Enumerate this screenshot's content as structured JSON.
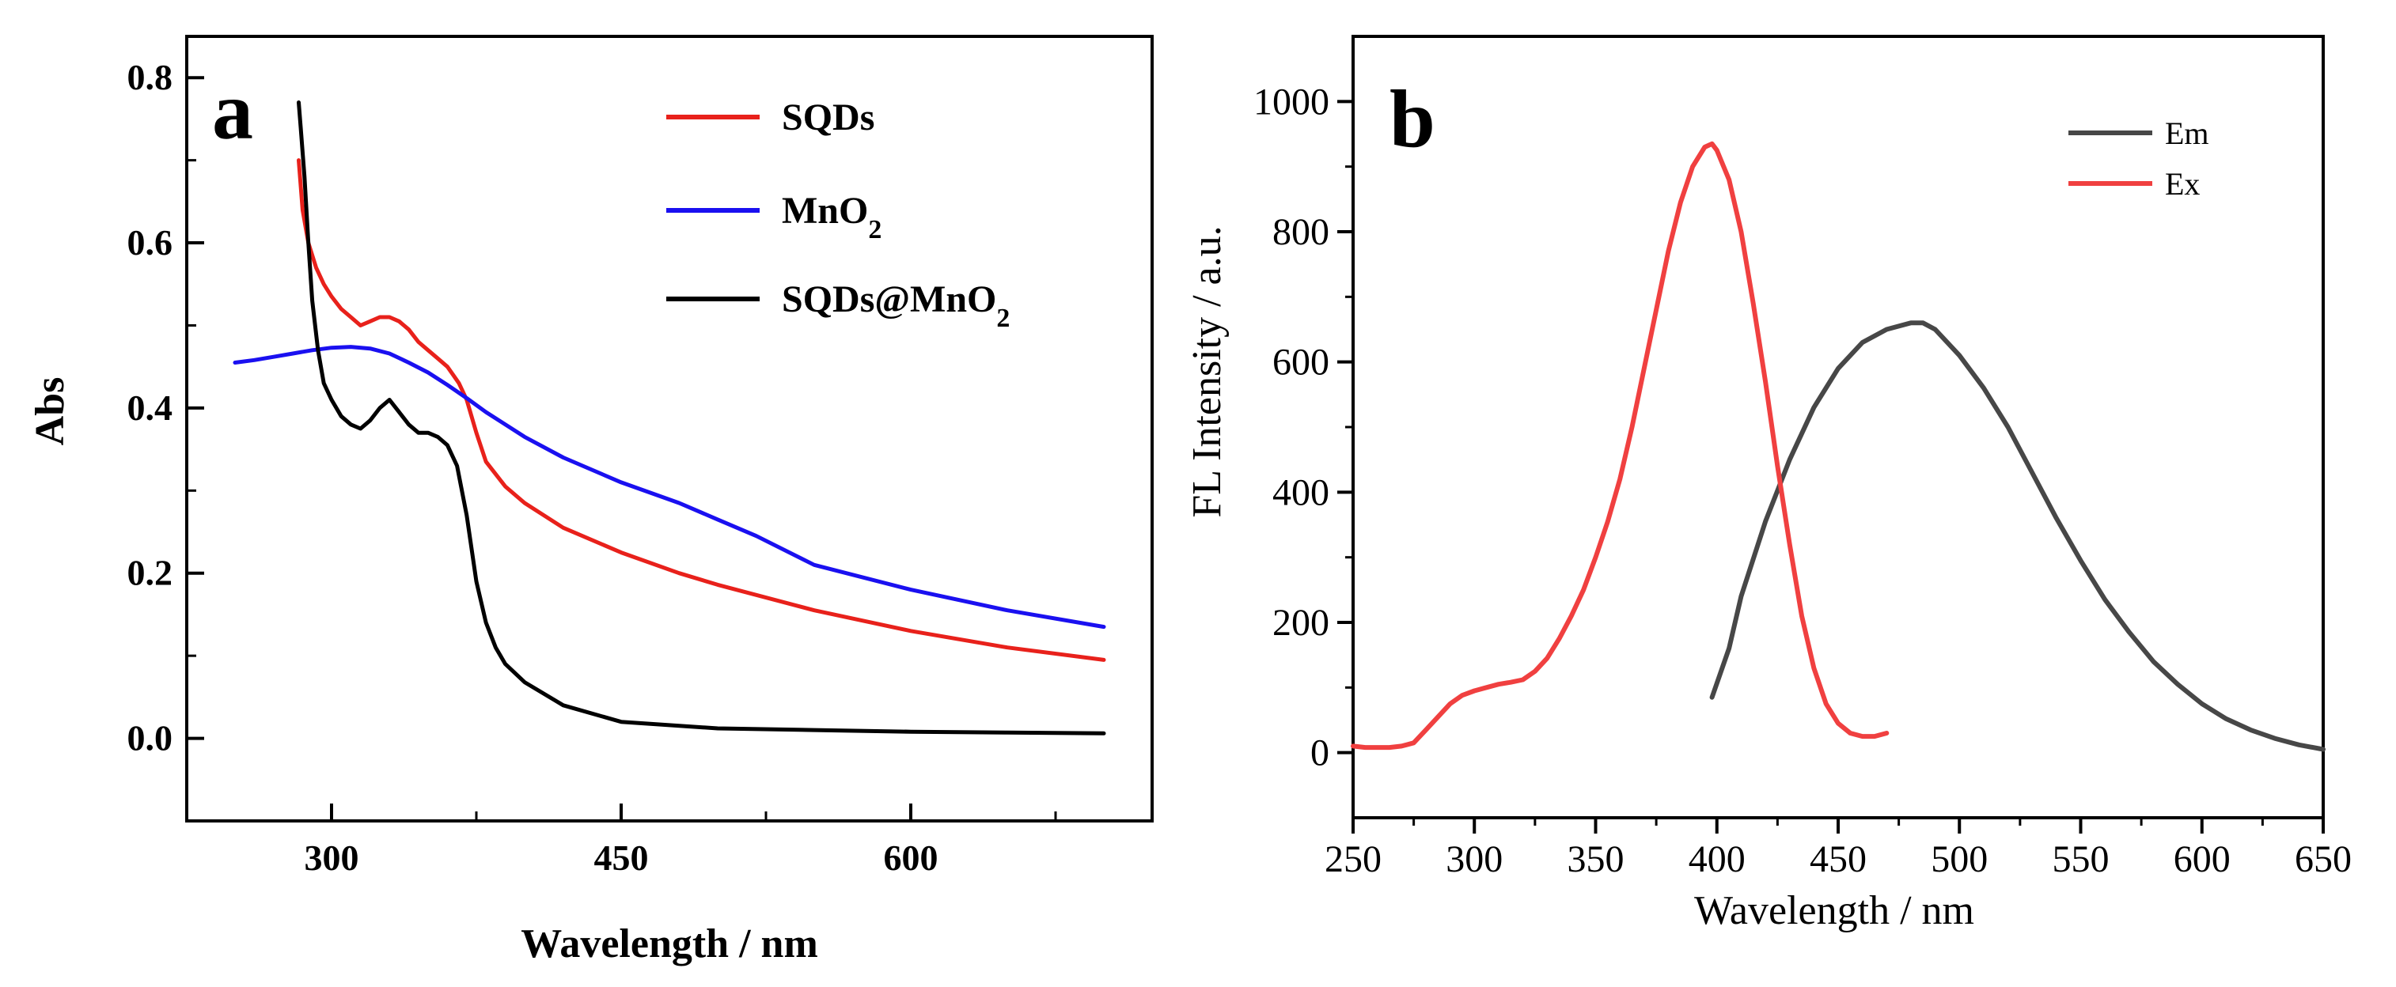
{
  "figure": {
    "panels": [
      "a",
      "b"
    ]
  },
  "chart_data": [
    {
      "type": "line",
      "panel_label": "a",
      "title": "",
      "xlabel": "Wavelength / nm",
      "ylabel": "Abs",
      "xlim": [
        225,
        725
      ],
      "ylim": [
        -0.1,
        0.85
      ],
      "x_ticks": [
        300,
        450,
        600
      ],
      "y_ticks": [
        0.0,
        0.2,
        0.4,
        0.6,
        0.8
      ],
      "y_tick_labels": [
        "0.0",
        "0.2",
        "0.4",
        "0.6",
        "0.8"
      ],
      "legend_position": "top-right",
      "series": [
        {
          "name": "SQDs",
          "color": "#e8211b",
          "x": [
            283,
            285,
            288,
            292,
            296,
            300,
            305,
            310,
            315,
            320,
            325,
            330,
            335,
            340,
            345,
            350,
            355,
            360,
            363,
            366,
            370,
            375,
            380,
            390,
            400,
            420,
            450,
            480,
            500,
            550,
            600,
            650,
            700
          ],
          "y": [
            0.7,
            0.64,
            0.6,
            0.57,
            0.55,
            0.535,
            0.52,
            0.51,
            0.5,
            0.505,
            0.51,
            0.51,
            0.505,
            0.495,
            0.48,
            0.47,
            0.46,
            0.45,
            0.44,
            0.43,
            0.41,
            0.37,
            0.335,
            0.305,
            0.285,
            0.255,
            0.225,
            0.2,
            0.186,
            0.155,
            0.13,
            0.11,
            0.095
          ]
        },
        {
          "name": "MnO₂",
          "color": "#1a10f0",
          "x": [
            250,
            260,
            270,
            280,
            290,
            300,
            310,
            320,
            330,
            340,
            350,
            360,
            370,
            380,
            400,
            420,
            450,
            480,
            500,
            520,
            550,
            600,
            650,
            700
          ],
          "y": [
            0.455,
            0.458,
            0.462,
            0.466,
            0.47,
            0.473,
            0.474,
            0.472,
            0.466,
            0.455,
            0.443,
            0.428,
            0.412,
            0.395,
            0.365,
            0.34,
            0.31,
            0.285,
            0.265,
            0.245,
            0.21,
            0.18,
            0.155,
            0.135
          ]
        },
        {
          "name": "SQDs@MnO₂",
          "color": "#000000",
          "x": [
            283,
            284,
            286,
            288,
            290,
            293,
            296,
            300,
            305,
            310,
            315,
            320,
            325,
            330,
            335,
            340,
            345,
            350,
            355,
            360,
            365,
            370,
            375,
            380,
            385,
            390,
            400,
            420,
            450,
            500,
            550,
            600,
            650,
            700
          ],
          "y": [
            0.77,
            0.74,
            0.68,
            0.6,
            0.53,
            0.47,
            0.43,
            0.41,
            0.39,
            0.38,
            0.375,
            0.385,
            0.4,
            0.41,
            0.395,
            0.38,
            0.37,
            0.37,
            0.365,
            0.355,
            0.33,
            0.27,
            0.19,
            0.14,
            0.11,
            0.09,
            0.068,
            0.04,
            0.02,
            0.012,
            0.01,
            0.008,
            0.007,
            0.006
          ]
        }
      ]
    },
    {
      "type": "line",
      "panel_label": "b",
      "title": "",
      "xlabel": "Wavelength / nm",
      "ylabel": "FL  Intensity / a.u.",
      "xlim": [
        250,
        650
      ],
      "ylim": [
        -100,
        1100
      ],
      "x_ticks": [
        250,
        300,
        350,
        400,
        450,
        500,
        550,
        600,
        650
      ],
      "y_ticks": [
        0,
        200,
        400,
        600,
        800,
        1000
      ],
      "legend_position": "top-right",
      "series": [
        {
          "name": "Em",
          "color": "#474747",
          "x": [
            398,
            405,
            410,
            420,
            430,
            440,
            450,
            460,
            470,
            480,
            485,
            490,
            500,
            510,
            520,
            530,
            540,
            550,
            560,
            570,
            580,
            590,
            600,
            610,
            620,
            630,
            640,
            650
          ],
          "y": [
            85,
            160,
            240,
            355,
            450,
            530,
            590,
            630,
            650,
            660,
            660,
            650,
            610,
            560,
            500,
            430,
            360,
            295,
            235,
            185,
            140,
            105,
            75,
            52,
            35,
            22,
            12,
            5
          ]
        },
        {
          "name": "Ex",
          "color": "#f04040",
          "x": [
            250,
            255,
            260,
            265,
            270,
            275,
            280,
            285,
            290,
            295,
            300,
            305,
            310,
            315,
            320,
            325,
            330,
            335,
            340,
            345,
            350,
            355,
            360,
            365,
            370,
            375,
            380,
            385,
            390,
            395,
            398,
            400,
            405,
            410,
            415,
            420,
            425,
            430,
            435,
            440,
            445,
            450,
            455,
            460,
            465,
            470
          ],
          "y": [
            10,
            8,
            8,
            8,
            10,
            15,
            35,
            55,
            75,
            88,
            95,
            100,
            105,
            108,
            112,
            125,
            145,
            175,
            210,
            250,
            300,
            355,
            420,
            500,
            590,
            680,
            770,
            845,
            900,
            930,
            935,
            925,
            880,
            800,
            690,
            570,
            440,
            320,
            210,
            130,
            75,
            45,
            30,
            25,
            25,
            30
          ]
        }
      ]
    }
  ]
}
